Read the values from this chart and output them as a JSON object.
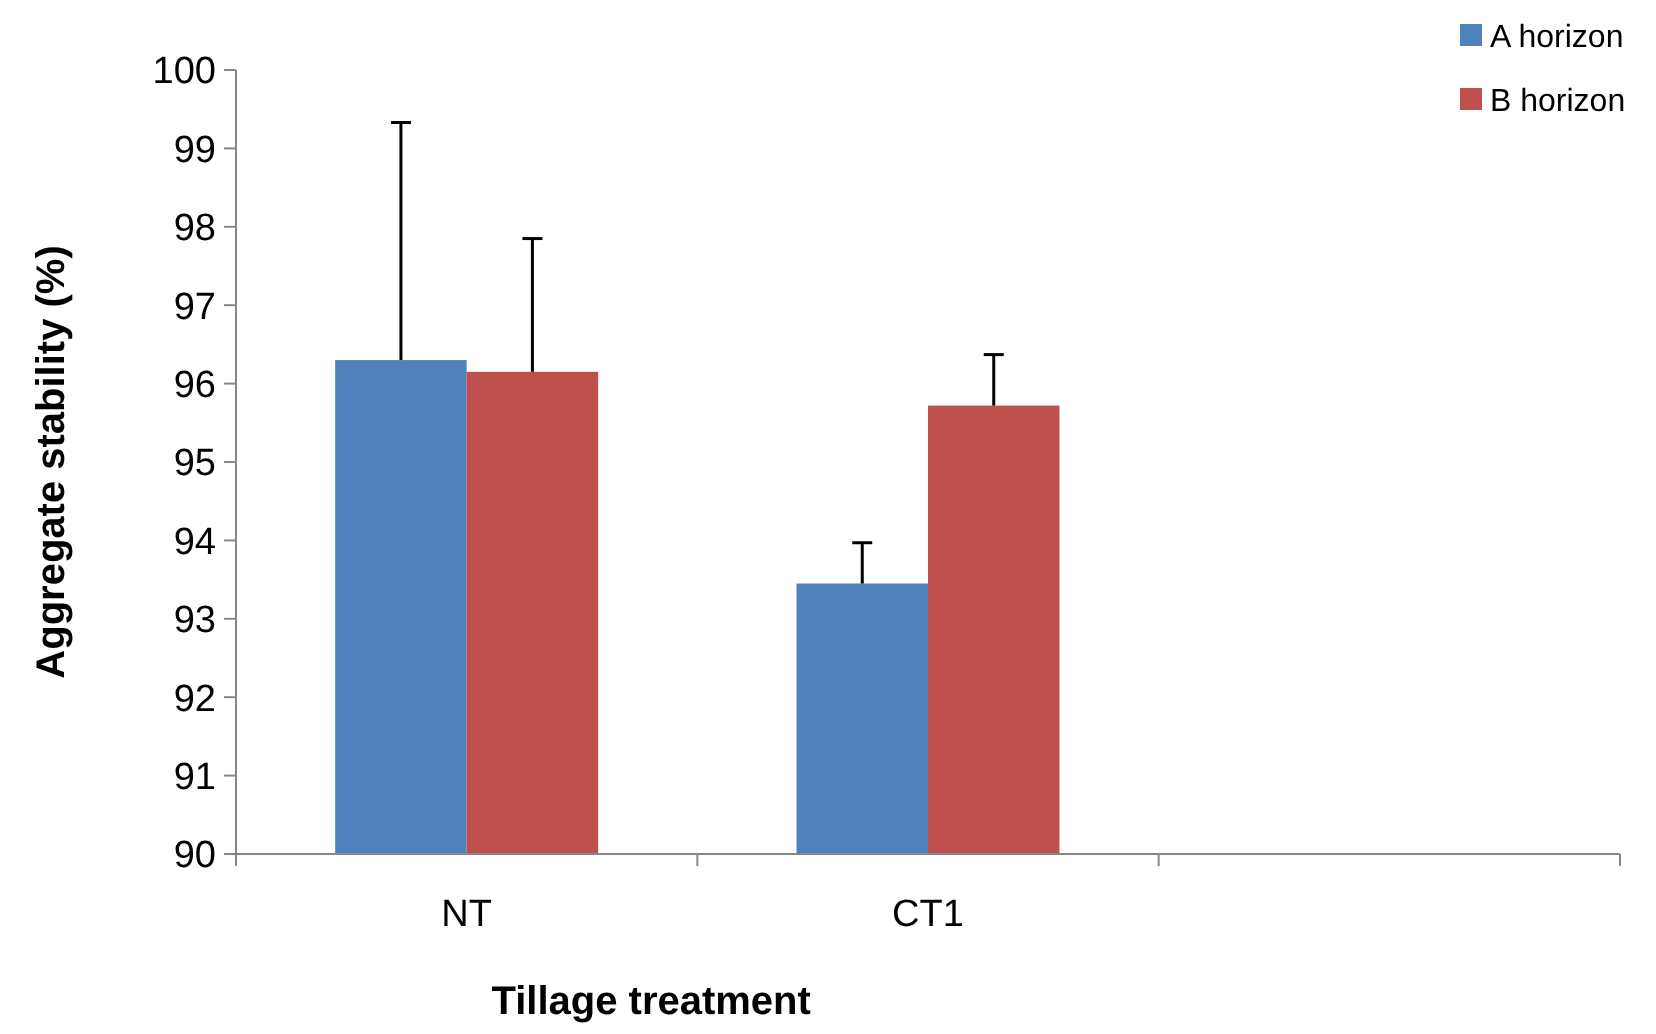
{
  "chart_data": {
    "type": "bar",
    "xlabel": "Tillage treatment",
    "ylabel": "Aggregate stability (%)",
    "categories": [
      "NT",
      "CT1",
      null
    ],
    "series": [
      {
        "name": "A horizon",
        "color": "#4f81bd",
        "values": [
          96.3,
          93.45,
          null
        ],
        "errors": [
          [
            96.3,
            99.33
          ],
          [
            93.45,
            93.97
          ],
          null
        ]
      },
      {
        "name": "B horizon",
        "color": "#c0504d",
        "values": [
          96.15,
          95.72,
          null
        ],
        "errors": [
          [
            96.15,
            97.85
          ],
          [
            95.72,
            96.37
          ],
          null
        ]
      }
    ],
    "ylim": [
      90,
      100
    ],
    "yticks": [
      90,
      91,
      92,
      93,
      94,
      95,
      96,
      97,
      98,
      99,
      100
    ],
    "grid": false,
    "legend": "top right"
  }
}
